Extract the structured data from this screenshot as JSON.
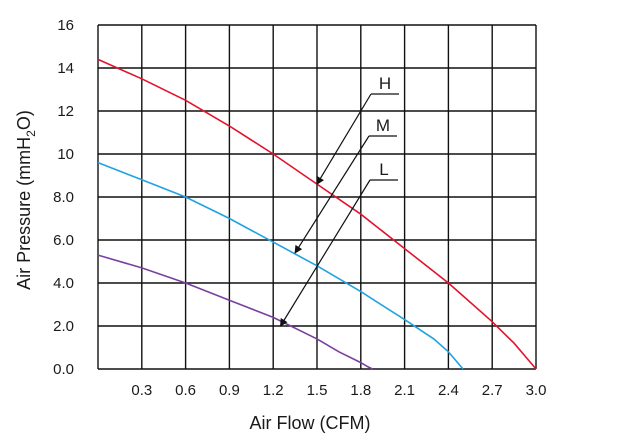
{
  "chart_data": {
    "type": "line",
    "xlabel": "Air Flow (CFM)",
    "ylabel": {
      "pre": "Air Pressure (mmH",
      "sub": "2",
      "post": "O)"
    },
    "xlim": [
      0,
      3.0
    ],
    "ylim": [
      0,
      16
    ],
    "x_ticks": [
      "0.3",
      "0.6",
      "0.9",
      "1.2",
      "1.5",
      "1.8",
      "2.1",
      "2.4",
      "2.7",
      "3.0"
    ],
    "y_ticks": [
      "0.0",
      "2.0",
      "4.0",
      "6.0",
      "8.0",
      "10",
      "12",
      "14",
      "16"
    ],
    "grid": true,
    "series": [
      {
        "name": "H",
        "color": "#e3132c",
        "x": [
          0.0,
          0.3,
          0.6,
          0.9,
          1.2,
          1.5,
          1.8,
          2.1,
          2.4,
          2.7,
          2.85,
          2.95,
          3.0
        ],
        "y": [
          14.4,
          13.5,
          12.5,
          11.3,
          10.0,
          8.6,
          7.2,
          5.6,
          4.0,
          2.2,
          1.2,
          0.4,
          0.0
        ]
      },
      {
        "name": "M",
        "color": "#1fa3e0",
        "x": [
          0.0,
          0.3,
          0.6,
          0.9,
          1.2,
          1.5,
          1.8,
          2.1,
          2.3,
          2.4,
          2.45,
          2.5
        ],
        "y": [
          9.6,
          8.8,
          8.0,
          7.0,
          5.9,
          4.8,
          3.6,
          2.3,
          1.4,
          0.8,
          0.4,
          0.0
        ]
      },
      {
        "name": "L",
        "color": "#7b3f9e",
        "x": [
          0.0,
          0.3,
          0.6,
          0.9,
          1.2,
          1.5,
          1.65,
          1.8,
          1.85,
          1.88
        ],
        "y": [
          5.3,
          4.7,
          4.0,
          3.2,
          2.4,
          1.4,
          0.8,
          0.3,
          0.1,
          0.0
        ]
      }
    ],
    "annotations": [
      {
        "label": "H",
        "point": [
          1.5,
          8.6
        ]
      },
      {
        "label": "M",
        "point": [
          1.35,
          5.4
        ]
      },
      {
        "label": "L",
        "point": [
          1.25,
          2.0
        ]
      }
    ]
  }
}
